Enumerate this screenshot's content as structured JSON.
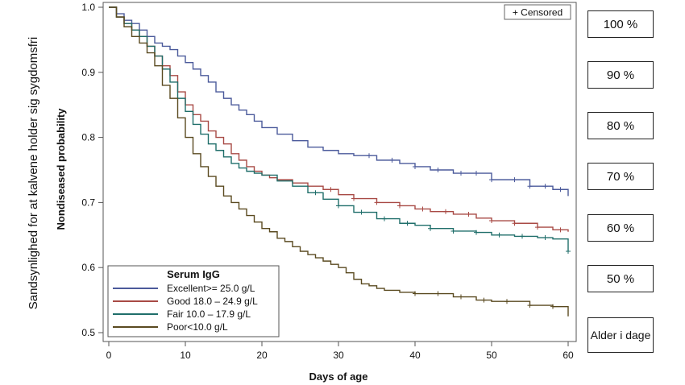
{
  "chart_data": {
    "type": "line",
    "title": "",
    "xlabel": "Days of age",
    "ylabel": "Nondiseased probability",
    "outer_ylabel": "Sandsynlighed for at kalvene holder sig sygdomsfri",
    "xlim": [
      0,
      61
    ],
    "ylim": [
      0.49,
      1.0
    ],
    "xticks": [
      0,
      10,
      20,
      30,
      40,
      50,
      60
    ],
    "xtick_labels": [
      "0",
      "10",
      "20",
      "30",
      "40",
      "50",
      "60"
    ],
    "yticks": [
      0.5,
      0.6,
      0.7,
      0.8,
      0.9,
      1.0
    ],
    "ytick_labels": [
      "0.5",
      "0.6",
      "0.7",
      "0.8",
      "0.9",
      "1.0"
    ],
    "censored_label": "+ Censored",
    "legend_title": "Serum IgG",
    "legend_position": "bottom-left",
    "series": [
      {
        "name": "Excellent>= 25.0 g/L",
        "color": "#4b5a9b",
        "x": [
          0,
          1,
          2,
          3,
          4,
          5,
          6,
          7,
          8,
          9,
          10,
          11,
          12,
          13,
          14,
          15,
          16,
          17,
          18,
          19,
          20,
          22,
          24,
          26,
          28,
          30,
          32,
          35,
          38,
          40,
          42,
          45,
          50,
          55,
          58,
          60
        ],
        "y": [
          1.0,
          0.99,
          0.98,
          0.975,
          0.965,
          0.955,
          0.945,
          0.94,
          0.935,
          0.925,
          0.915,
          0.905,
          0.895,
          0.885,
          0.87,
          0.86,
          0.85,
          0.842,
          0.835,
          0.825,
          0.815,
          0.805,
          0.795,
          0.785,
          0.78,
          0.775,
          0.772,
          0.765,
          0.76,
          0.755,
          0.75,
          0.745,
          0.735,
          0.725,
          0.72,
          0.71
        ],
        "censored_x": [
          34,
          37,
          40,
          43,
          46,
          48,
          50,
          53,
          55,
          57,
          59
        ]
      },
      {
        "name": "Good 18.0 – 24.9 g/L",
        "color": "#a84a45",
        "x": [
          0,
          1,
          2,
          3,
          4,
          5,
          6,
          7,
          8,
          9,
          10,
          11,
          12,
          13,
          14,
          15,
          16,
          17,
          18,
          19,
          20,
          21,
          22,
          24,
          26,
          28,
          30,
          32,
          35,
          38,
          40,
          42,
          45,
          48,
          50,
          53,
          56,
          58,
          60
        ],
        "y": [
          1.0,
          0.985,
          0.975,
          0.965,
          0.955,
          0.94,
          0.925,
          0.91,
          0.895,
          0.87,
          0.85,
          0.835,
          0.825,
          0.81,
          0.8,
          0.79,
          0.775,
          0.765,
          0.755,
          0.748,
          0.742,
          0.738,
          0.735,
          0.73,
          0.725,
          0.72,
          0.712,
          0.706,
          0.7,
          0.695,
          0.69,
          0.686,
          0.682,
          0.676,
          0.672,
          0.668,
          0.662,
          0.658,
          0.655
        ],
        "censored_x": [
          29,
          32,
          35,
          38,
          41,
          44,
          47,
          50,
          53,
          56,
          59
        ]
      },
      {
        "name": "Fair 10.0 – 17.9 g/L",
        "color": "#1f6e6a",
        "x": [
          0,
          1,
          2,
          3,
          4,
          5,
          6,
          7,
          8,
          9,
          10,
          11,
          12,
          13,
          14,
          15,
          16,
          17,
          18,
          19,
          20,
          22,
          24,
          26,
          28,
          30,
          32,
          35,
          38,
          40,
          42,
          45,
          48,
          50,
          53,
          56,
          58,
          60
        ],
        "y": [
          1.0,
          0.985,
          0.975,
          0.965,
          0.955,
          0.94,
          0.925,
          0.905,
          0.885,
          0.86,
          0.84,
          0.82,
          0.805,
          0.79,
          0.78,
          0.77,
          0.76,
          0.753,
          0.748,
          0.745,
          0.742,
          0.733,
          0.725,
          0.715,
          0.705,
          0.695,
          0.685,
          0.675,
          0.668,
          0.665,
          0.66,
          0.656,
          0.654,
          0.65,
          0.648,
          0.646,
          0.644,
          0.625
        ],
        "censored_x": [
          27,
          30,
          33,
          36,
          39,
          42,
          45,
          48,
          51,
          54,
          57,
          60
        ]
      },
      {
        "name": "Poor<10.0 g/L",
        "color": "#5a4a20",
        "x": [
          0,
          1,
          2,
          3,
          4,
          5,
          6,
          7,
          8,
          9,
          10,
          11,
          12,
          13,
          14,
          15,
          16,
          17,
          18,
          19,
          20,
          21,
          22,
          23,
          24,
          25,
          26,
          27,
          28,
          29,
          30,
          31,
          32,
          33,
          34,
          35,
          36,
          38,
          40,
          45,
          48,
          50,
          55,
          58,
          60
        ],
        "y": [
          1.0,
          0.985,
          0.97,
          0.955,
          0.945,
          0.93,
          0.91,
          0.88,
          0.86,
          0.83,
          0.8,
          0.775,
          0.755,
          0.74,
          0.725,
          0.71,
          0.7,
          0.69,
          0.68,
          0.67,
          0.66,
          0.655,
          0.645,
          0.64,
          0.632,
          0.625,
          0.62,
          0.615,
          0.61,
          0.605,
          0.6,
          0.592,
          0.582,
          0.575,
          0.572,
          0.568,
          0.565,
          0.562,
          0.56,
          0.555,
          0.55,
          0.548,
          0.542,
          0.54,
          0.525
        ],
        "censored_x": [
          40,
          43,
          46,
          49,
          52,
          55,
          58
        ]
      }
    ]
  },
  "annotations": [
    {
      "text": "100 %",
      "value": 1.0
    },
    {
      "text": "90 %",
      "value": 0.9
    },
    {
      "text": "80 %",
      "value": 0.8
    },
    {
      "text": "70 %",
      "value": 0.7
    },
    {
      "text": "60 %",
      "value": 0.6
    },
    {
      "text": "50 %",
      "value": 0.5
    }
  ],
  "age_box_text": "Alder i dage"
}
